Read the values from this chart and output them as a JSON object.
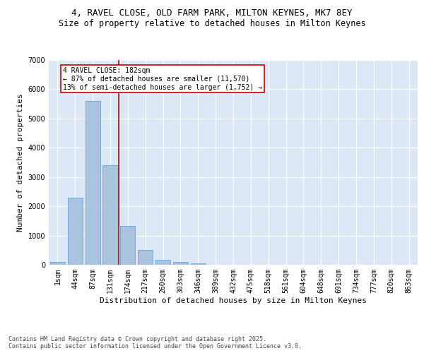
{
  "title_line1": "4, RAVEL CLOSE, OLD FARM PARK, MILTON KEYNES, MK7 8EY",
  "title_line2": "Size of property relative to detached houses in Milton Keynes",
  "xlabel": "Distribution of detached houses by size in Milton Keynes",
  "ylabel": "Number of detached properties",
  "categories": [
    "1sqm",
    "44sqm",
    "87sqm",
    "131sqm",
    "174sqm",
    "217sqm",
    "260sqm",
    "303sqm",
    "346sqm",
    "389sqm",
    "432sqm",
    "475sqm",
    "518sqm",
    "561sqm",
    "604sqm",
    "648sqm",
    "691sqm",
    "734sqm",
    "777sqm",
    "820sqm",
    "863sqm"
  ],
  "values": [
    100,
    2300,
    5600,
    3400,
    1330,
    500,
    175,
    95,
    55,
    0,
    0,
    0,
    0,
    0,
    0,
    0,
    0,
    0,
    0,
    0,
    0
  ],
  "bar_color": "#aac4e0",
  "bar_edge_color": "#5599cc",
  "vline_color": "#cc0000",
  "vline_pos": 3.5,
  "annotation_text": "4 RAVEL CLOSE: 182sqm\n← 87% of detached houses are smaller (11,570)\n13% of semi-detached houses are larger (1,752) →",
  "annotation_box_color": "#cc0000",
  "ylim": [
    0,
    7000
  ],
  "yticks": [
    0,
    1000,
    2000,
    3000,
    4000,
    5000,
    6000,
    7000
  ],
  "bg_color": "#dce8f5",
  "grid_color": "#ffffff",
  "footer_text": "Contains HM Land Registry data © Crown copyright and database right 2025.\nContains public sector information licensed under the Open Government Licence v3.0.",
  "title_fontsize": 9,
  "subtitle_fontsize": 8.5,
  "label_fontsize": 8,
  "tick_fontsize": 7,
  "annot_fontsize": 7,
  "footer_fontsize": 6
}
